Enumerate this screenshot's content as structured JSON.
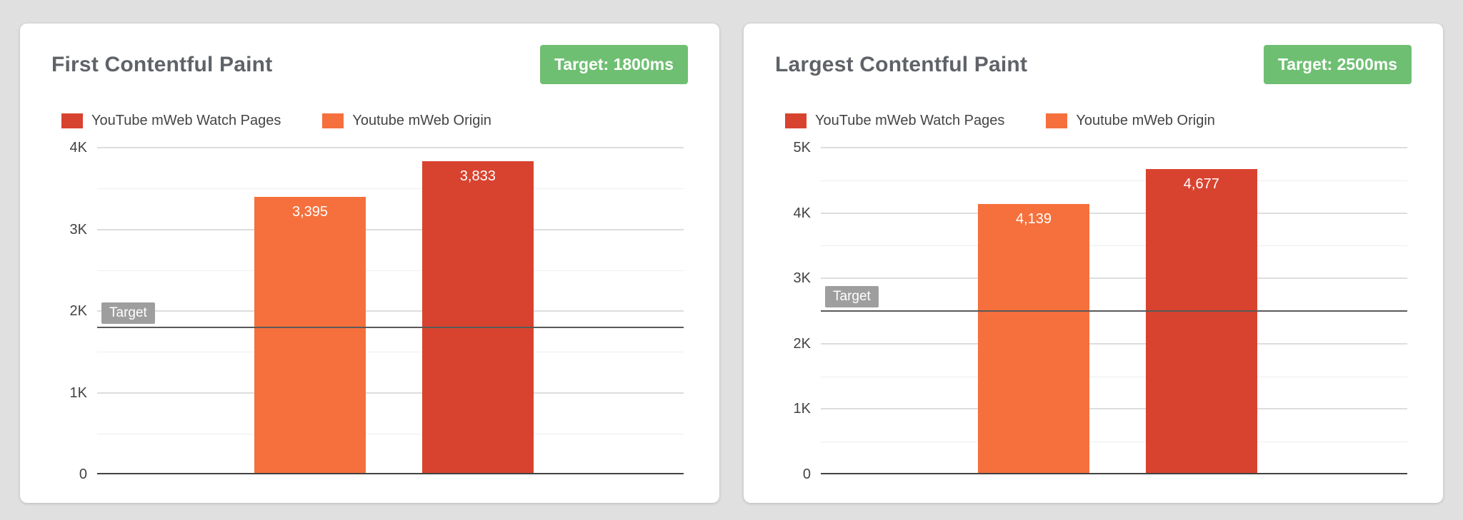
{
  "colors": {
    "background": "#e0e0e0",
    "card": "#ffffff",
    "badge_green": "#6fbf73",
    "target_chip_gray": "#9e9e9e",
    "watch_pages_red": "#d8432f",
    "origin_orange": "#f5703c"
  },
  "chart_data": [
    {
      "type": "bar",
      "title": "First Contentful Paint",
      "target_badge_label": "Target: 1800ms",
      "target": {
        "label": "Target",
        "value": 1800
      },
      "y_axis": {
        "max": 4000,
        "major_step": 1000,
        "minor_step": 500,
        "tick_labels": [
          "0",
          "1K",
          "2K",
          "3K",
          "4K"
        ]
      },
      "legend": [
        {
          "label": "YouTube mWeb Watch Pages",
          "color": "#d8432f"
        },
        {
          "label": "Youtube mWeb Origin",
          "color": "#f5703c"
        }
      ],
      "bars": [
        {
          "series": "Youtube mWeb Origin",
          "value": 3395,
          "label": "3,395",
          "color": "#f5703c"
        },
        {
          "series": "YouTube mWeb Watch Pages",
          "value": 3833,
          "label": "3,833",
          "color": "#d8432f"
        }
      ],
      "grid": true,
      "legend_position": "top"
    },
    {
      "type": "bar",
      "title": "Largest Contentful Paint",
      "target_badge_label": "Target: 2500ms",
      "target": {
        "label": "Target",
        "value": 2500
      },
      "y_axis": {
        "max": 5000,
        "major_step": 1000,
        "minor_step": 500,
        "tick_labels": [
          "0",
          "1K",
          "2K",
          "3K",
          "4K",
          "5K"
        ]
      },
      "legend": [
        {
          "label": "YouTube mWeb Watch Pages",
          "color": "#d8432f"
        },
        {
          "label": "Youtube mWeb Origin",
          "color": "#f5703c"
        }
      ],
      "bars": [
        {
          "series": "Youtube mWeb Origin",
          "value": 4139,
          "label": "4,139",
          "color": "#f5703c"
        },
        {
          "series": "YouTube mWeb Watch Pages",
          "value": 4677,
          "label": "4,677",
          "color": "#d8432f"
        }
      ],
      "grid": true,
      "legend_position": "top"
    }
  ]
}
